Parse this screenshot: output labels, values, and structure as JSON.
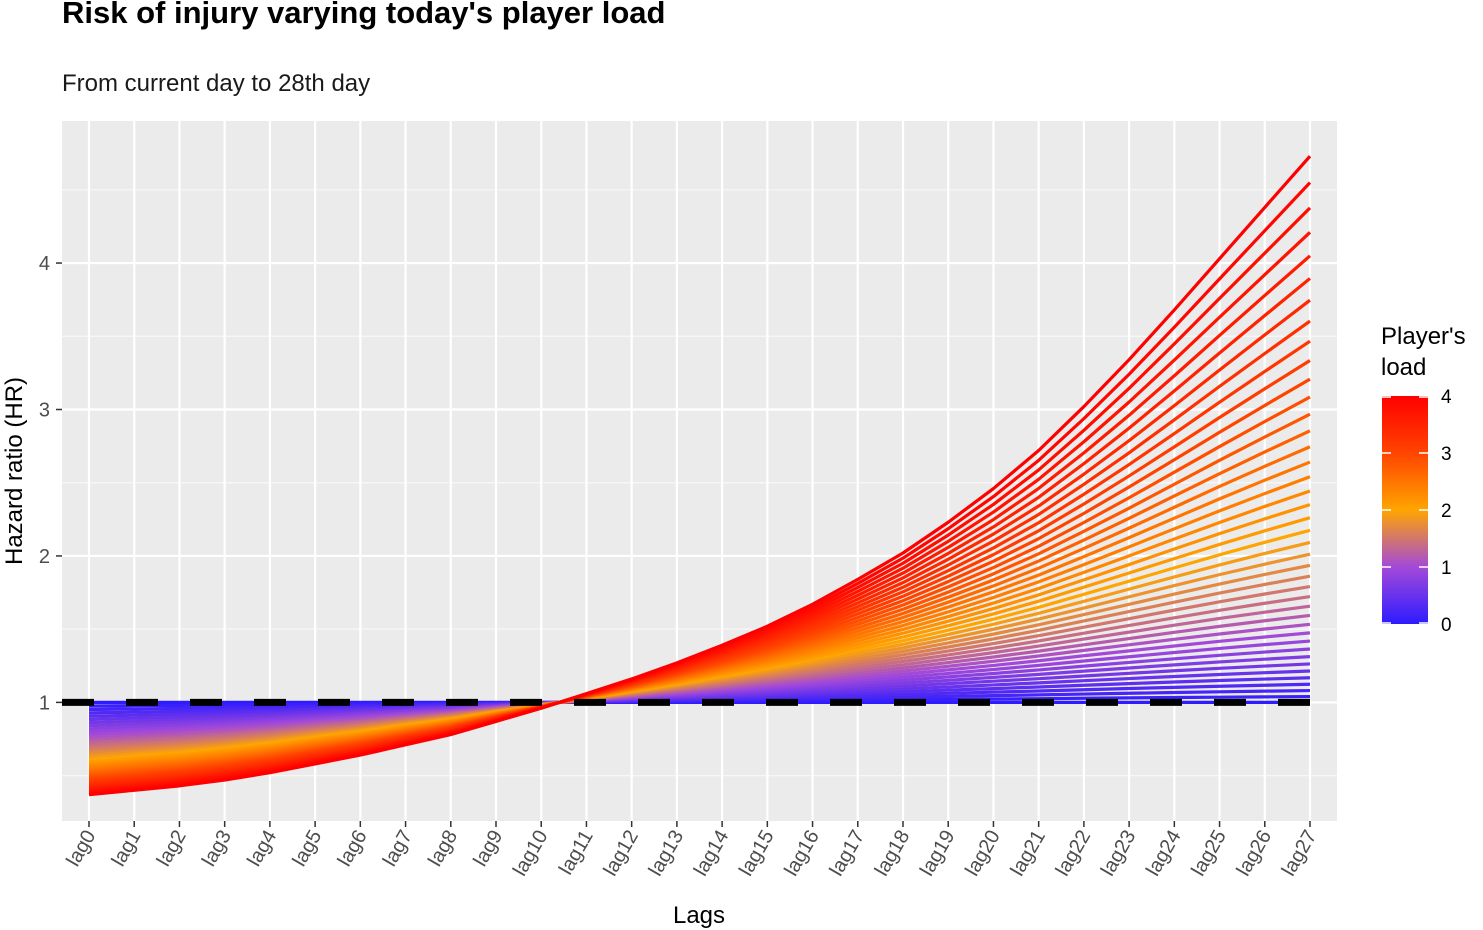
{
  "chart_data": {
    "type": "line",
    "title": "Risk of injury varying today's player load",
    "subtitle": "From current day to 28th day",
    "xlabel": "Lags",
    "ylabel": "Hazard ratio (HR)",
    "categories": [
      "lag0",
      "lag1",
      "lag2",
      "lag3",
      "lag4",
      "lag5",
      "lag6",
      "lag7",
      "lag8",
      "lag9",
      "lag10",
      "lag11",
      "lag12",
      "lag13",
      "lag14",
      "lag15",
      "lag16",
      "lag17",
      "lag18",
      "lag19",
      "lag20",
      "lag21",
      "lag22",
      "lag23",
      "lag24",
      "lag25",
      "lag26",
      "lag27"
    ],
    "ylim": [
      0.19,
      4.97
    ],
    "yticks": [
      1,
      2,
      3,
      4
    ],
    "grid": true,
    "reference_line": {
      "y": 1,
      "style": "dashed",
      "color": "#000000"
    },
    "series_model": {
      "description_values": "hazard ratio curves for player's load from 0 to 4",
      "load_range": [
        0,
        4
      ],
      "n_curves": 41,
      "hr_at_lag0_for_load_4": 0.37,
      "hr_at_lag27_for_load_4": 4.73
    },
    "series": [
      {
        "load": 4.0,
        "values": [
          0.37,
          0.4,
          0.43,
          0.47,
          0.52,
          0.58,
          0.64,
          0.71,
          0.78,
          0.87,
          0.96,
          1.06,
          1.16,
          1.27,
          1.39,
          1.52,
          1.67,
          1.84,
          2.02,
          2.23,
          2.46,
          2.72,
          3.02,
          3.34,
          3.68,
          4.03,
          4.38,
          4.73
        ]
      },
      {
        "load": 3.0,
        "values": [
          0.48,
          0.5,
          0.53,
          0.57,
          0.61,
          0.66,
          0.71,
          0.77,
          0.83,
          0.9,
          0.97,
          1.05,
          1.13,
          1.21,
          1.3,
          1.4,
          1.51,
          1.63,
          1.76,
          1.91,
          2.07,
          2.25,
          2.45,
          2.66,
          2.87,
          3.09,
          3.31,
          3.54
        ]
      },
      {
        "load": 2.0,
        "values": [
          0.62,
          0.64,
          0.66,
          0.68,
          0.71,
          0.75,
          0.78,
          0.82,
          0.86,
          0.91,
          0.97,
          1.03,
          1.09,
          1.14,
          1.2,
          1.26,
          1.32,
          1.39,
          1.46,
          1.54,
          1.62,
          1.71,
          1.8,
          1.89,
          1.98,
          2.07,
          2.17,
          2.31
        ]
      },
      {
        "load": 1.0,
        "values": [
          0.8,
          0.81,
          0.82,
          0.83,
          0.85,
          0.87,
          0.88,
          0.9,
          0.92,
          0.95,
          0.98,
          1.01,
          1.04,
          1.07,
          1.1,
          1.13,
          1.16,
          1.19,
          1.22,
          1.26,
          1.3,
          1.34,
          1.38,
          1.42,
          1.46,
          1.5,
          1.54,
          1.58
        ]
      },
      {
        "load": 0.0,
        "values": [
          1.0,
          1.0,
          1.0,
          1.0,
          1.0,
          1.0,
          1.0,
          1.0,
          1.0,
          1.0,
          1.0,
          1.0,
          1.0,
          1.0,
          1.0,
          1.0,
          1.0,
          1.0,
          1.0,
          1.0,
          1.0,
          1.0,
          1.0,
          1.0,
          1.0,
          1.0,
          1.0,
          1.0
        ]
      }
    ],
    "legend": {
      "title": "Player's load",
      "title_lines": [
        "Player's",
        "load"
      ],
      "type": "colorbar",
      "placement": "right",
      "range": [
        0,
        4
      ],
      "labels": [
        "4",
        "3",
        "2",
        "1",
        "0"
      ],
      "colors": [
        "#ff0000",
        "#ff4400",
        "#ffa500",
        "#a349d9",
        "#2d1cff"
      ]
    }
  }
}
